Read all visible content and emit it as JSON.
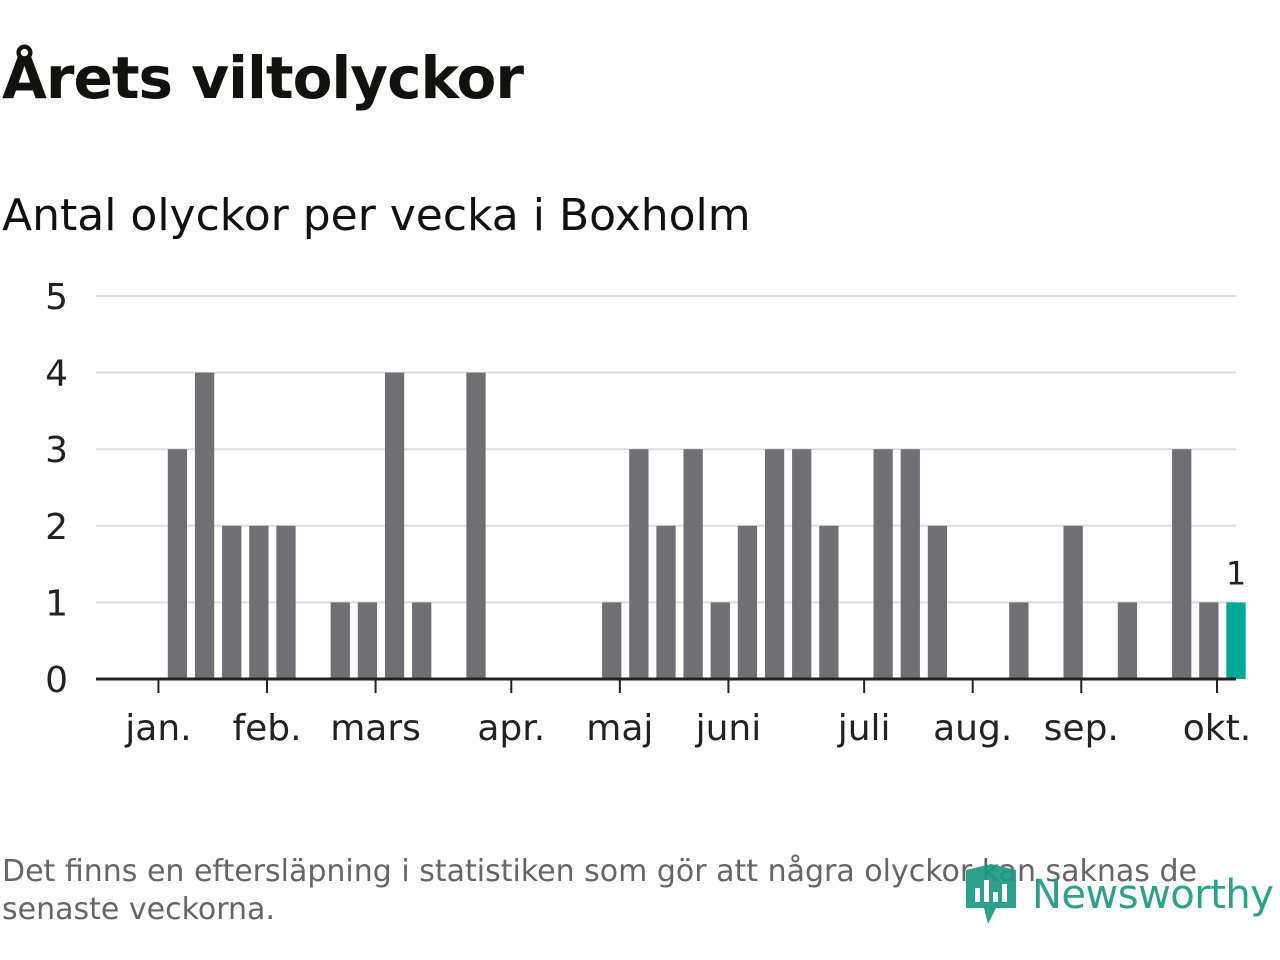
{
  "header": {
    "title": "Årets viltolyckor",
    "subtitle": "Antal olyckor per vecka i Boxholm"
  },
  "chart_data": {
    "type": "bar",
    "ylim": [
      0,
      5
    ],
    "yticks": [
      0,
      1,
      2,
      3,
      4,
      5
    ],
    "grid": true,
    "week_count": 42,
    "values": [
      0,
      3,
      4,
      2,
      2,
      2,
      0,
      1,
      1,
      4,
      1,
      0,
      4,
      0,
      0,
      0,
      0,
      1,
      3,
      2,
      3,
      1,
      2,
      3,
      3,
      2,
      0,
      3,
      3,
      2,
      0,
      0,
      1,
      0,
      2,
      0,
      1,
      0,
      3,
      1,
      1
    ],
    "highlight_index": 40,
    "highlight_label": "1",
    "month_labels": [
      {
        "label": "jan.",
        "week": 0.3
      },
      {
        "label": "feb.",
        "week": 4.3
      },
      {
        "label": "mars",
        "week": 8.3
      },
      {
        "label": "apr.",
        "week": 13.3
      },
      {
        "label": "maj",
        "week": 17.3
      },
      {
        "label": "juni",
        "week": 21.3
      },
      {
        "label": "juli",
        "week": 26.3
      },
      {
        "label": "aug.",
        "week": 30.3
      },
      {
        "label": "sep.",
        "week": 34.3
      },
      {
        "label": "okt.",
        "week": 39.3
      }
    ],
    "colors": {
      "bar": "#707073",
      "highlight": "#00a89a",
      "grid": "#dddddd",
      "axis": "#222222"
    }
  },
  "footnote": "Det finns en eftersläpning i statistiken som gör att några olyckor kan saknas de senaste veckorna.",
  "brand": {
    "name": "Newsworthy",
    "logo_icon": "newsworthy-logo-icon",
    "color": "#1c9a80"
  }
}
